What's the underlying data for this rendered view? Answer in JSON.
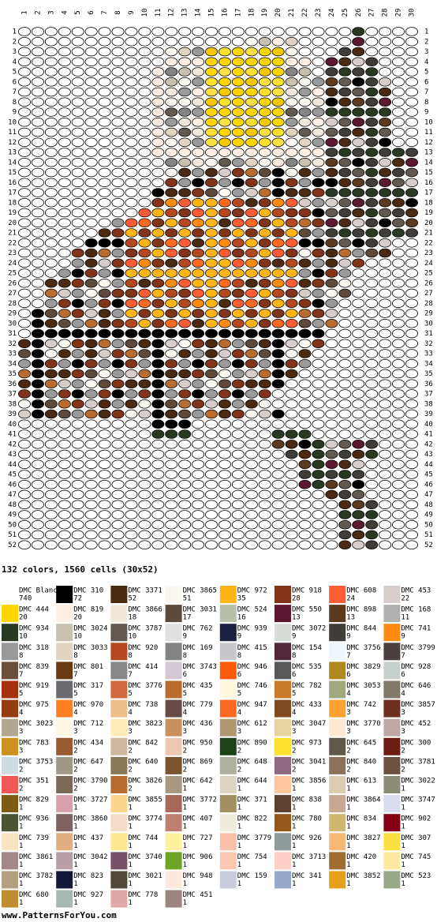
{
  "grid": {
    "column_numbers": [
      1,
      2,
      3,
      4,
      5,
      6,
      7,
      8,
      9,
      10,
      11,
      12,
      13,
      14,
      15,
      16,
      17,
      18,
      19,
      20,
      21,
      22,
      23,
      24,
      25,
      26,
      27,
      28,
      29,
      30
    ],
    "row_numbers": [
      1,
      2,
      3,
      4,
      5,
      6,
      7,
      8,
      9,
      10,
      11,
      12,
      13,
      14,
      15,
      16,
      17,
      18,
      19,
      20,
      21,
      22,
      23,
      24,
      25,
      26,
      27,
      28,
      29,
      30,
      31,
      32,
      33,
      34,
      35,
      36,
      37,
      38,
      39,
      40,
      41,
      42,
      43,
      44,
      45,
      46,
      47,
      48,
      49,
      50,
      51,
      52
    ]
  },
  "summary": "132 colors, 1560 cells (30x52)",
  "legend": [
    {
      "name": "DMC Blanc",
      "count": 740,
      "color": "#ffffff"
    },
    {
      "name": "DMC 310",
      "count": 72,
      "color": "#000000"
    },
    {
      "name": "DMC 3371",
      "count": 52,
      "color": "#4a2a12"
    },
    {
      "name": "DMC 3865",
      "count": 51,
      "color": "#faf6f0"
    },
    {
      "name": "DMC 972",
      "count": 35,
      "color": "#ffb515"
    },
    {
      "name": "DMC 918",
      "count": 28,
      "color": "#82341a"
    },
    {
      "name": "DMC 608",
      "count": 24,
      "color": "#fd5d35"
    },
    {
      "name": "DMC 453",
      "count": 22,
      "color": "#d7cecb"
    },
    {
      "name": "DMC 444",
      "count": 20,
      "color": "#ffd600"
    },
    {
      "name": "DMC 819",
      "count": 20,
      "color": "#ffeee4"
    },
    {
      "name": "DMC 3866",
      "count": 18,
      "color": "#f0e8dc"
    },
    {
      "name": "DMC 3031",
      "count": 17,
      "color": "#5e4a3a"
    },
    {
      "name": "DMC 524",
      "count": 16,
      "color": "#b8c0a8"
    },
    {
      "name": "DMC 550",
      "count": 13,
      "color": "#5c1830"
    },
    {
      "name": "DMC 898",
      "count": 13,
      "color": "#5c3a20"
    },
    {
      "name": "DMC 168",
      "count": 11,
      "color": "#b0b0b0"
    },
    {
      "name": "DMC 934",
      "count": 10,
      "color": "#2a3a22"
    },
    {
      "name": "DMC 3024",
      "count": 10,
      "color": "#c8c0b0"
    },
    {
      "name": "DMC 3787",
      "count": 10,
      "color": "#625a50"
    },
    {
      "name": "DMC 762",
      "count": 9,
      "color": "#e0e0e0"
    },
    {
      "name": "DMC 939",
      "count": 9,
      "color": "#1c2040"
    },
    {
      "name": "DMC 3072",
      "count": 9,
      "color": "#d8dcd8"
    },
    {
      "name": "DMC 844",
      "count": 9,
      "color": "#403c38"
    },
    {
      "name": "DMC 741",
      "count": 9,
      "color": "#ff8a10"
    },
    {
      "name": "DMC 318",
      "count": 8,
      "color": "#9a9a9a"
    },
    {
      "name": "DMC 3033",
      "count": 8,
      "color": "#e0d4c0"
    },
    {
      "name": "DMC 920",
      "count": 8,
      "color": "#b44820"
    },
    {
      "name": "DMC 169",
      "count": 8,
      "color": "#848484"
    },
    {
      "name": "DMC 415",
      "count": 8,
      "color": "#c8c8cc"
    },
    {
      "name": "DMC 154",
      "count": 8,
      "color": "#50283a"
    },
    {
      "name": "DMC 3756",
      "count": 7,
      "color": "#eef8fc"
    },
    {
      "name": "DMC 3799",
      "count": 7,
      "color": "#4a4040"
    },
    {
      "name": "DMC 839",
      "count": 7,
      "color": "#6a503a"
    },
    {
      "name": "DMC 801",
      "count": 7,
      "color": "#6a3a10"
    },
    {
      "name": "DMC 414",
      "count": 7,
      "color": "#888888"
    },
    {
      "name": "DMC 3743",
      "count": 6,
      "color": "#d4c8d4"
    },
    {
      "name": "DMC 946",
      "count": 6,
      "color": "#ff5a08"
    },
    {
      "name": "DMC 535",
      "count": 6,
      "color": "#585858"
    },
    {
      "name": "DMC 3829",
      "count": 6,
      "color": "#b08820"
    },
    {
      "name": "DMC 928",
      "count": 6,
      "color": "#c8d0cc"
    },
    {
      "name": "DMC 919",
      "count": 5,
      "color": "#a4300e"
    },
    {
      "name": "DMC 317",
      "count": 5,
      "color": "#6c6c70"
    },
    {
      "name": "DMC 3776",
      "count": 5,
      "color": "#d06840"
    },
    {
      "name": "DMC 435",
      "count": 5,
      "color": "#b86c30"
    },
    {
      "name": "DMC 746",
      "count": 5,
      "color": "#fff8dc"
    },
    {
      "name": "DMC 782",
      "count": 5,
      "color": "#c87a28"
    },
    {
      "name": "DMC 3053",
      "count": 4,
      "color": "#a0a880"
    },
    {
      "name": "DMC 646",
      "count": 4,
      "color": "#807868"
    },
    {
      "name": "DMC 975",
      "count": 4,
      "color": "#963c10"
    },
    {
      "name": "DMC 970",
      "count": 4,
      "color": "#ff8020"
    },
    {
      "name": "DMC 738",
      "count": 4,
      "color": "#ecc08c"
    },
    {
      "name": "DMC 779",
      "count": 4,
      "color": "#6a4a48"
    },
    {
      "name": "DMC 947",
      "count": 4,
      "color": "#ff6a20"
    },
    {
      "name": "DMC 433",
      "count": 4,
      "color": "#804a20"
    },
    {
      "name": "DMC 742",
      "count": 3,
      "color": "#ffa030"
    },
    {
      "name": "DMC 3857",
      "count": 3,
      "color": "#6c3020"
    },
    {
      "name": "DMC 3023",
      "count": 3,
      "color": "#b0a890"
    },
    {
      "name": "DMC 712",
      "count": 3,
      "color": "#fff8e4"
    },
    {
      "name": "DMC 3823",
      "count": 3,
      "color": "#ffecb8"
    },
    {
      "name": "DMC 436",
      "count": 3,
      "color": "#c8905c"
    },
    {
      "name": "DMC 612",
      "count": 3,
      "color": "#b09870"
    },
    {
      "name": "DMC 3047",
      "count": 3,
      "color": "#e8d4a0"
    },
    {
      "name": "DMC 3770",
      "count": 3,
      "color": "#ffe8d0"
    },
    {
      "name": "DMC 452",
      "count": 3,
      "color": "#c0a8a8"
    },
    {
      "name": "DMC 783",
      "count": 3,
      "color": "#d09020"
    },
    {
      "name": "DMC 434",
      "count": 2,
      "color": "#985830"
    },
    {
      "name": "DMC 842",
      "count": 2,
      "color": "#d0b8a0"
    },
    {
      "name": "DMC 950",
      "count": 2,
      "color": "#ecc8b0"
    },
    {
      "name": "DMC 890",
      "count": 2,
      "color": "#1c4418"
    },
    {
      "name": "DMC 973",
      "count": 2,
      "color": "#ffe030"
    },
    {
      "name": "DMC 645",
      "count": 2,
      "color": "#605848"
    },
    {
      "name": "DMC 300",
      "count": 2,
      "color": "#6c1c10"
    },
    {
      "name": "DMC 3753",
      "count": 2,
      "color": "#d0dce4"
    },
    {
      "name": "DMC 647",
      "count": 2,
      "color": "#a09888"
    },
    {
      "name": "DMC 640",
      "count": 2,
      "color": "#887858"
    },
    {
      "name": "DMC 869",
      "count": 2,
      "color": "#7c5430"
    },
    {
      "name": "DMC 648",
      "count": 2,
      "color": "#b0b0a0"
    },
    {
      "name": "DMC 3041",
      "count": 2,
      "color": "#906880"
    },
    {
      "name": "DMC 840",
      "count": 2,
      "color": "#8c7058"
    },
    {
      "name": "DMC 3781",
      "count": 2,
      "color": "#6c5040"
    },
    {
      "name": "DMC 351",
      "count": 2,
      "color": "#f05858"
    },
    {
      "name": "DMC 3790",
      "count": 2,
      "color": "#7c6a58"
    },
    {
      "name": "DMC 3826",
      "count": 2,
      "color": "#b86c30"
    },
    {
      "name": "DMC 642",
      "count": 1,
      "color": "#a89880"
    },
    {
      "name": "DMC 644",
      "count": 1,
      "color": "#dcd4c0"
    },
    {
      "name": "DMC 3856",
      "count": 1,
      "color": "#ffc8a0"
    },
    {
      "name": "DMC 613",
      "count": 1,
      "color": "#dcccb0"
    },
    {
      "name": "DMC 3022",
      "count": 1,
      "color": "#8c8c78"
    },
    {
      "name": "DMC 829",
      "count": 1,
      "color": "#7c5c14"
    },
    {
      "name": "DMC 3727",
      "count": 1,
      "color": "#d8a0ac"
    },
    {
      "name": "DMC 3855",
      "count": 1,
      "color": "#fad690"
    },
    {
      "name": "DMC 3772",
      "count": 1,
      "color": "#a86858"
    },
    {
      "name": "DMC 371",
      "count": 1,
      "color": "#a09060"
    },
    {
      "name": "DMC 838",
      "count": 1,
      "color": "#5c4030"
    },
    {
      "name": "DMC 3864",
      "count": 1,
      "color": "#c8a890"
    },
    {
      "name": "DMC 3747",
      "count": 1,
      "color": "#d8dcec"
    },
    {
      "name": "DMC 936",
      "count": 1,
      "color": "#4a5430"
    },
    {
      "name": "DMC 3860",
      "count": 1,
      "color": "#806060"
    },
    {
      "name": "DMC 3774",
      "count": 1,
      "color": "#f4dcc8"
    },
    {
      "name": "DMC 407",
      "count": 1,
      "color": "#c08070"
    },
    {
      "name": "DMC 822",
      "count": 1,
      "color": "#f0ecdc"
    },
    {
      "name": "DMC 780",
      "count": 1,
      "color": "#94581c"
    },
    {
      "name": "DMC 834",
      "count": 1,
      "color": "#d0b870"
    },
    {
      "name": "DMC 902",
      "count": 1,
      "color": "#820014"
    },
    {
      "name": "DMC 739",
      "count": 1,
      "color": "#f8e4c0"
    },
    {
      "name": "DMC 437",
      "count": 1,
      "color": "#e0b080"
    },
    {
      "name": "DMC 744",
      "count": 1,
      "color": "#ffe890"
    },
    {
      "name": "DMC 727",
      "count": 1,
      "color": "#fff0a0"
    },
    {
      "name": "DMC 3779",
      "count": 1,
      "color": "#f8c0a8"
    },
    {
      "name": "DMC 926",
      "count": 1,
      "color": "#909c9c"
    },
    {
      "name": "DMC 3827",
      "count": 1,
      "color": "#f8b878"
    },
    {
      "name": "DMC 307",
      "count": 1,
      "color": "#fde044"
    },
    {
      "name": "DMC 3861",
      "count": 1,
      "color": "#a48888"
    },
    {
      "name": "DMC 3042",
      "count": 1,
      "color": "#b8a0a8"
    },
    {
      "name": "DMC 3740",
      "count": 1,
      "color": "#785068"
    },
    {
      "name": "DMC 906",
      "count": 1,
      "color": "#6ca424"
    },
    {
      "name": "DMC 754",
      "count": 1,
      "color": "#f8c8b0"
    },
    {
      "name": "DMC 3713",
      "count": 1,
      "color": "#fcd0c8"
    },
    {
      "name": "DMC 420",
      "count": 1,
      "color": "#a06c30"
    },
    {
      "name": "DMC 745",
      "count": 1,
      "color": "#ffe8a0"
    },
    {
      "name": "DMC 3782",
      "count": 1,
      "color": "#b4a080"
    },
    {
      "name": "DMC 823",
      "count": 1,
      "color": "#141838"
    },
    {
      "name": "DMC 3021",
      "count": 1,
      "color": "#504838"
    },
    {
      "name": "DMC 948",
      "count": 1,
      "color": "#fee8dc"
    },
    {
      "name": "DMC 159",
      "count": 1,
      "color": "#c8ccdc"
    },
    {
      "name": "DMC 341",
      "count": 1,
      "color": "#98a8c8"
    },
    {
      "name": "DMC 3852",
      "count": 1,
      "color": "#e4a018"
    },
    {
      "name": "DMC 523",
      "count": 1,
      "color": "#98a888"
    },
    {
      "name": "DMC 680",
      "count": 1,
      "color": "#c08c30"
    },
    {
      "name": "DMC 927",
      "count": 1,
      "color": "#a8b8b4"
    },
    {
      "name": "DMC 778",
      "count": 1,
      "color": "#e0a8a8"
    },
    {
      "name": "DMC 451",
      "count": 1,
      "color": "#9c8480"
    }
  ],
  "footer": "www.PatternsForYou.com"
}
